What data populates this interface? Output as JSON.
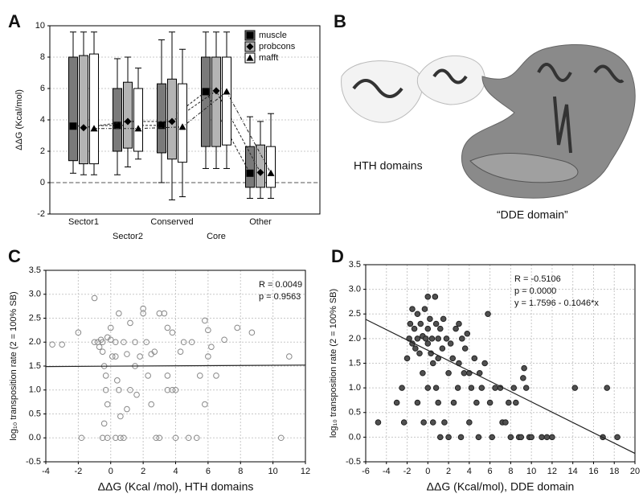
{
  "chart_data": [
    {
      "type": "box",
      "panel": "A",
      "ylabel": "ΔΔG (Kcal/mol)",
      "categories": [
        "Sector1",
        "Sector2",
        "Conserved",
        "Core",
        "Other"
      ],
      "ylim": [
        -2,
        10
      ],
      "yticks": [
        -2,
        0,
        2,
        4,
        6,
        8,
        10
      ],
      "grid": true,
      "reference_line": 0,
      "legend": "top-right",
      "series": [
        {
          "name": "muscle",
          "color": "#7a7a7a",
          "marker": "square",
          "low": [
            0.6,
            0.5,
            0,
            0.9,
            -1.0
          ],
          "q1": [
            1.4,
            2.0,
            1.9,
            2.3,
            -0.3
          ],
          "q3": [
            8.0,
            6.0,
            6.3,
            8.0,
            2.3
          ],
          "high": [
            9.6,
            7.9,
            9.1,
            9.6,
            4.2
          ],
          "center": [
            3.6,
            3.65,
            3.65,
            5.8,
            0.6
          ]
        },
        {
          "name": "probcons",
          "color": "#b4b4b4",
          "marker": "diamond",
          "low": [
            0.5,
            1.0,
            -1.1,
            0.9,
            -1.0
          ],
          "q1": [
            1.2,
            2.2,
            1.5,
            2.3,
            -0.3
          ],
          "q3": [
            8.1,
            6.4,
            6.6,
            8.0,
            2.4
          ],
          "high": [
            9.6,
            8.0,
            9.6,
            9.6,
            3.9
          ],
          "center": [
            3.5,
            3.9,
            3.9,
            5.85,
            0.65
          ]
        },
        {
          "name": "mafft",
          "color": "#ffffff",
          "marker": "triangle",
          "low": [
            0.5,
            1.5,
            -0.9,
            0.9,
            -1.0
          ],
          "q1": [
            1.2,
            2.0,
            1.3,
            2.4,
            -0.3
          ],
          "q3": [
            8.2,
            6.0,
            6.3,
            8.0,
            2.3
          ],
          "high": [
            9.6,
            7.3,
            8.5,
            9.6,
            4.4
          ],
          "center": [
            3.45,
            3.45,
            3.55,
            5.8,
            0.6
          ]
        }
      ]
    },
    {
      "type": "image",
      "panel": "B",
      "labels": [
        "HTH domains",
        "“DDE domain”"
      ]
    },
    {
      "type": "scatter",
      "panel": "C",
      "xlabel": "ΔΔG (Kcal /mol), HTH domains",
      "ylabel": "log₁₀ transposition rate (2 = 100% SB)",
      "color": "#888888",
      "filled": false,
      "grid": true,
      "annotations": [
        "R = 0.0049",
        "p = 0.9563"
      ],
      "xlim": [
        -4,
        12
      ],
      "xticks": [
        -4,
        -2,
        0,
        2,
        4,
        6,
        8,
        10,
        12
      ],
      "ylim": [
        -0.5,
        3.5
      ],
      "yticks": [
        -0.5,
        {
          "value": 0,
          "label": "0.0"
        },
        0.5,
        {
          "value": 1,
          "label": "1.0"
        },
        1.5,
        {
          "value": 2,
          "label": "2.0"
        },
        2.5,
        {
          "value": 3,
          "label": "3.0"
        },
        3.5
      ],
      "x": [
        -3.6,
        -3,
        -2,
        -1.8,
        -1,
        -1,
        -0.8,
        -0.7,
        -0.6,
        -0.5,
        -0.5,
        -0.4,
        -0.3,
        -0.3,
        -0.2,
        0,
        0,
        0.1,
        0.3,
        0.3,
        0.5,
        0.5,
        0.6,
        0.8,
        1,
        1,
        1.2,
        1.5,
        1.8,
        2,
        2,
        2.2,
        2.3,
        2.5,
        2.5,
        2.7,
        3,
        3.3,
        3.5,
        3.5,
        3.8,
        4,
        4,
        4.3,
        4.5,
        5,
        5.3,
        5.5,
        5.8,
        5.8,
        6,
        6,
        6.2,
        6.5,
        7,
        7.8,
        8.7,
        10.5,
        11,
        -0.5,
        -0.2,
        0.3,
        0.6,
        0.8,
        1.2,
        1.5,
        2.8,
        3,
        3.5,
        0.4,
        -0.2,
        -0.4,
        1.6,
        4.8,
        3.8
      ],
      "values": [
        1.95,
        1.95,
        2.2,
        0,
        2.0,
        2.92,
        2.0,
        1.9,
        2.05,
        1.8,
        2.0,
        1.5,
        1.3,
        1.0,
        2.1,
        2.3,
        2.05,
        1.7,
        2.0,
        1.7,
        2.6,
        1.0,
        0.45,
        2.0,
        1.75,
        0.6,
        2.4,
        2.0,
        1.7,
        2.7,
        2.6,
        2.0,
        1.3,
        1.75,
        0.7,
        1.8,
        2.6,
        2.6,
        2.3,
        1.3,
        2.2,
        1.0,
        0,
        1.8,
        2.0,
        2.0,
        0,
        1.3,
        2.45,
        0.7,
        2.25,
        1.7,
        1.9,
        1.3,
        2.05,
        2.3,
        2.2,
        0,
        1.7,
        0,
        0,
        0,
        0,
        0,
        1.0,
        1.5,
        0,
        0,
        1.0,
        1.2,
        0.7,
        0.3,
        0.9,
        0,
        1.0
      ],
      "fit": {
        "x": [
          -4,
          12
        ],
        "values": [
          1.49,
          1.52
        ]
      }
    },
    {
      "type": "scatter",
      "panel": "D",
      "xlabel": "ΔΔG (Kcal/mol), DDE domain",
      "ylabel": "log₁₀ transposition rate (2 = 100% SB)",
      "color": "#505050",
      "filled": true,
      "grid": true,
      "annotations": [
        "R = -0.5106",
        "p = 0.0000",
        "y = 1.7596 - 0.1046*x"
      ],
      "xlim": [
        -6,
        20
      ],
      "xticks": [
        -6,
        -4,
        -2,
        0,
        2,
        4,
        6,
        8,
        10,
        12,
        14,
        16,
        18,
        20
      ],
      "ylim": [
        -0.5,
        3.5
      ],
      "yticks": [
        -0.5,
        {
          "value": 0,
          "label": "0.0"
        },
        0.5,
        {
          "value": 1,
          "label": "1.0"
        },
        1.5,
        {
          "value": 2,
          "label": "2.0"
        },
        2.5,
        {
          "value": 3,
          "label": "3.0"
        },
        3.5
      ],
      "x": [
        -4.8,
        -3,
        -2.5,
        -2.3,
        -2,
        -1.8,
        -1.7,
        -1.5,
        -1.5,
        -1.3,
        -1.2,
        -1,
        -1,
        -1,
        -0.8,
        -0.7,
        -0.5,
        -0.5,
        -0.4,
        -0.3,
        -0.2,
        0,
        0,
        0,
        0,
        0.2,
        0.3,
        0.4,
        0.5,
        0.5,
        0.7,
        0.8,
        0.8,
        1,
        1,
        1,
        1.2,
        1.2,
        1.4,
        1.5,
        1.6,
        1.8,
        2,
        2,
        2.2,
        2.4,
        2.5,
        2.7,
        2.9,
        3,
        3,
        3.2,
        3.3,
        3.5,
        3.6,
        3.8,
        4,
        4,
        4.2,
        4.5,
        4.7,
        4.9,
        5,
        5.2,
        5.5,
        5.8,
        6,
        6.2,
        6.5,
        7,
        7.2,
        7.5,
        7.8,
        8,
        8.3,
        8.5,
        8.8,
        9,
        9.2,
        9.3,
        9.5,
        9.8,
        11,
        11.5,
        14.2,
        16.9,
        17.3,
        18.3,
        10,
        12
      ],
      "values": [
        0.3,
        0.7,
        1.0,
        0.3,
        1.6,
        2.0,
        2.3,
        2.6,
        1.9,
        2.2,
        1.8,
        2.5,
        2.0,
        0.7,
        1.7,
        2.3,
        2.05,
        1.3,
        0.3,
        2.6,
        2.0,
        2.85,
        2.2,
        1.9,
        1.0,
        2.4,
        1.7,
        2.0,
        1.5,
        0.3,
        2.85,
        2.3,
        1.0,
        2.0,
        1.6,
        0.7,
        2.2,
        0,
        1.8,
        2.4,
        0.3,
        2.0,
        1.3,
        0,
        1.9,
        1.6,
        0.7,
        2.2,
        1.0,
        2.3,
        1.5,
        0,
        2.0,
        1.3,
        1.8,
        2.1,
        1.3,
        0.3,
        1.0,
        1.6,
        0.7,
        0,
        1.3,
        1.0,
        1.5,
        2.5,
        0.7,
        0,
        1.0,
        1.0,
        0.3,
        0.3,
        0.7,
        0,
        1.0,
        0.7,
        0,
        0,
        1.2,
        1.4,
        1.0,
        0,
        0,
        0,
        1.0,
        0,
        1.0,
        0,
        0,
        0
      ],
      "fit": {
        "x": [
          -6,
          20
        ],
        "values": [
          2.39,
          -0.33
        ]
      }
    }
  ]
}
